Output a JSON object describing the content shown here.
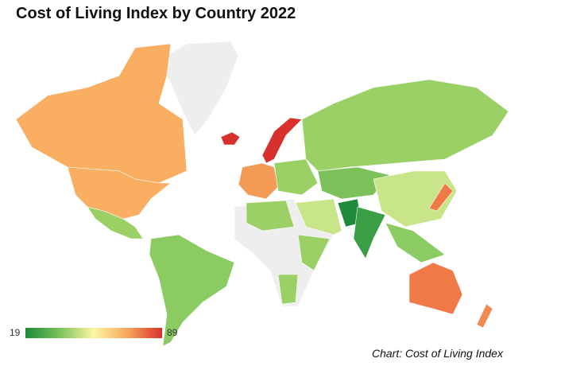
{
  "title": "Cost of Living Index by Country 2022",
  "caption": "Chart: Cost of Living Index",
  "chart_data": {
    "type": "choropleth",
    "title": "Cost of Living Index by Country 2022",
    "legend": {
      "min": "19",
      "max": "89",
      "colors": [
        "#1e8a3a",
        "#7cc15a",
        "#fbf6a4",
        "#f7a55a",
        "#d8302c"
      ],
      "placement": "bottom-left"
    },
    "no_data_color": "#eeeeee",
    "regions": [
      {
        "name": "Canada",
        "value": 68,
        "color": "#f9ae62"
      },
      {
        "name": "United States",
        "value": 70,
        "color": "#f9ae62"
      },
      {
        "name": "Greenland",
        "value": null,
        "color": "#eeeeee"
      },
      {
        "name": "Iceland",
        "value": 86,
        "color": "#d8302c"
      },
      {
        "name": "Norway",
        "value": 89,
        "color": "#d8302c"
      },
      {
        "name": "Western Europe",
        "value": 70,
        "color": "#f39a55"
      },
      {
        "name": "Eastern Europe",
        "value": 40,
        "color": "#9ad066"
      },
      {
        "name": "Russia",
        "value": 38,
        "color": "#9ad066"
      },
      {
        "name": "China",
        "value": 40,
        "color": "#c8e58a"
      },
      {
        "name": "Japan",
        "value": 78,
        "color": "#ef7a48"
      },
      {
        "name": "Pakistan",
        "value": 19,
        "color": "#1e8a3a"
      },
      {
        "name": "India",
        "value": 24,
        "color": "#3a9e45"
      },
      {
        "name": "Mexico",
        "value": 38,
        "color": "#9ad066"
      },
      {
        "name": "South America",
        "value": 33,
        "color": "#8ccb62"
      },
      {
        "name": "Africa",
        "value": 35,
        "color": "#9ad066"
      },
      {
        "name": "Australia",
        "value": 78,
        "color": "#ef7a48"
      },
      {
        "name": "New Zealand",
        "value": 74,
        "color": "#f08a50"
      }
    ]
  }
}
